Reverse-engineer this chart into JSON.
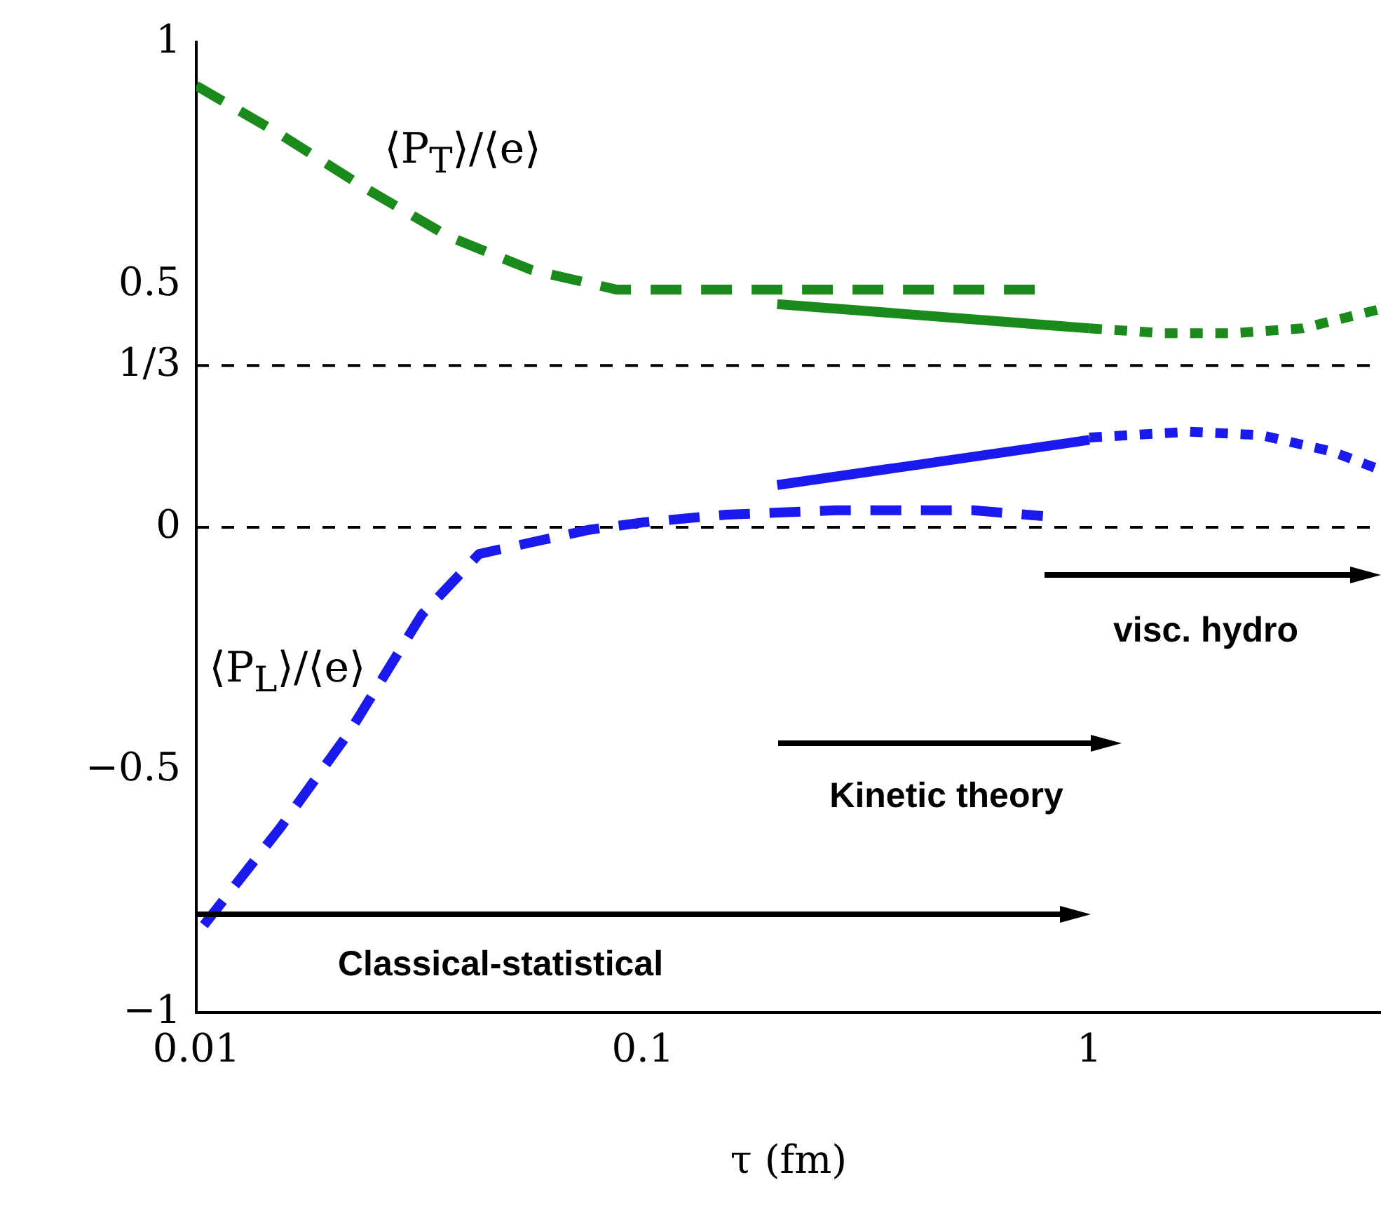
{
  "chart_data": {
    "type": "line",
    "xlabel": "τ (fm)",
    "log": "x",
    "grid": false,
    "legend": false,
    "marker": "none",
    "xlim": [
      0.01,
      4.5
    ],
    "xticks": [
      0.01,
      0.1,
      1
    ],
    "ylim": [
      -1,
      1
    ],
    "yticks": [
      {
        "value": -1,
        "label": "−1"
      },
      {
        "value": -0.5,
        "label": "−0.5"
      },
      0,
      {
        "value": 0.3333,
        "label": "1/3"
      },
      0.5,
      1
    ],
    "series": [
      {
        "color": "#1a8a1a",
        "line_style": "dashed",
        "x": [
          0.01,
          0.0154,
          0.0238,
          0.0366,
          0.0565,
          0.0872,
          0.134,
          0.207,
          0.32,
          0.787
        ],
        "values": [
          0.91,
          0.81,
          0.7,
          0.6,
          0.53,
          0.49,
          0.49,
          0.49,
          0.49,
          0.49
        ]
      },
      {
        "color": "#1a1aee",
        "line_style": "dashed",
        "x": [
          0.0104,
          0.0154,
          0.0221,
          0.032,
          0.043,
          0.057,
          0.076,
          0.1,
          0.154,
          0.27,
          0.55,
          0.787
        ],
        "values": [
          -0.82,
          -0.62,
          -0.42,
          -0.18,
          -0.055,
          -0.03,
          -0.005,
          0.01,
          0.026,
          0.035,
          0.035,
          0.023
        ]
      },
      {
        "color": "#1a8a1a",
        "line_style": "solid",
        "x": [
          0.2,
          1
        ],
        "values": [
          0.46,
          0.41
        ]
      },
      {
        "color": "#1a1aee",
        "line_style": "solid",
        "x": [
          0.2,
          1
        ],
        "values": [
          0.087,
          0.18
        ]
      },
      {
        "color": "#1a8a1a",
        "line_style": "dotted",
        "x": [
          1,
          1.46,
          2.1,
          3.0,
          4.5
        ],
        "values": [
          0.41,
          0.4,
          0.4,
          0.41,
          0.45
        ]
      },
      {
        "color": "#1a1aee",
        "line_style": "dotted",
        "x": [
          1,
          1.68,
          2.42,
          3.5,
          4.5
        ],
        "values": [
          0.185,
          0.197,
          0.19,
          0.156,
          0.118
        ]
      }
    ],
    "ref_lines": [
      {
        "axis": "y",
        "value": 0,
        "color": "#000000",
        "line_style": "dotted"
      },
      {
        "axis": "y",
        "value": 0.3333,
        "color": "#000000",
        "line_style": "dotted"
      }
    ],
    "annotations": [
      "⟨P$_{T}$⟩/⟨e⟩",
      "⟨P$_{L}$⟩/⟨e⟩",
      "Classical-statistical",
      "Kinetic theory",
      "visc. hydro"
    ]
  }
}
